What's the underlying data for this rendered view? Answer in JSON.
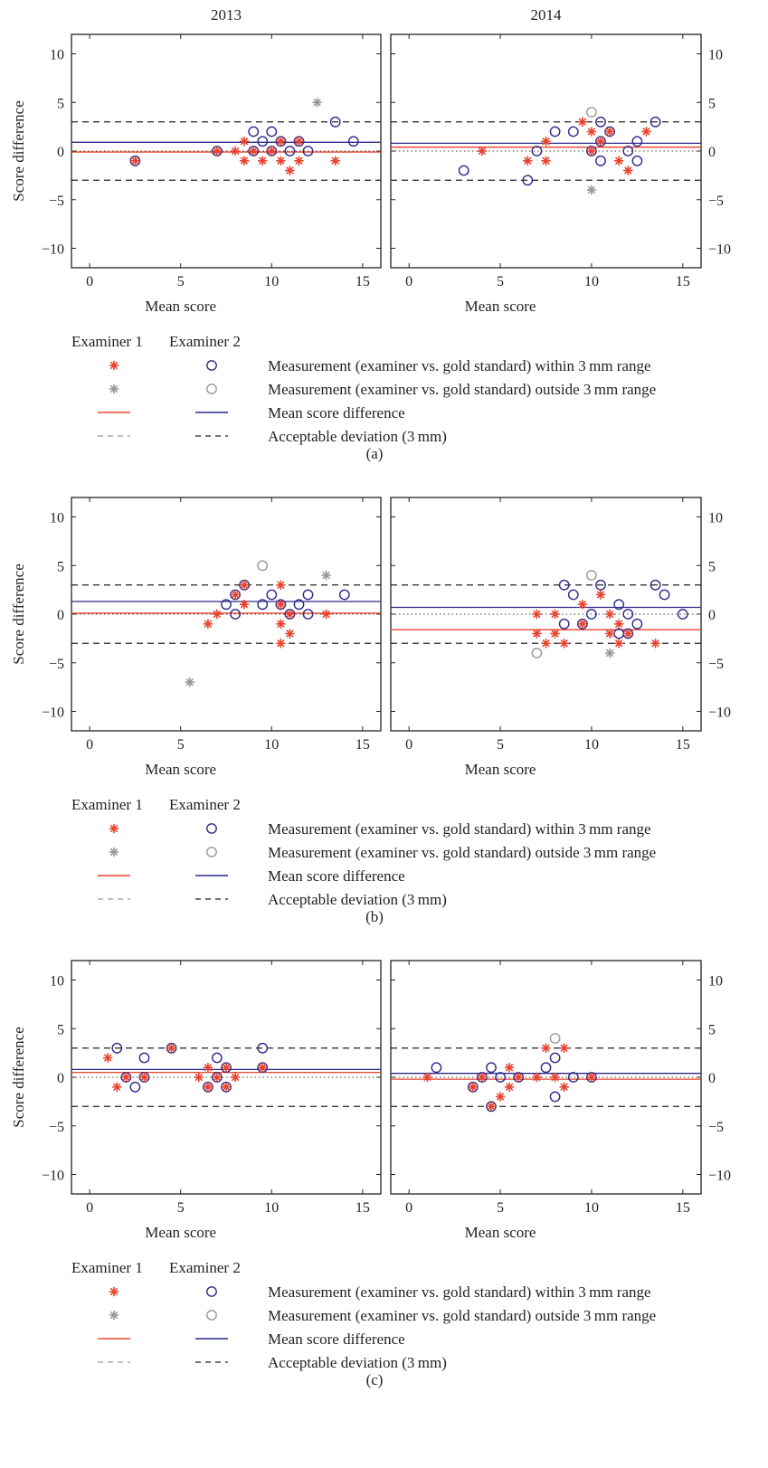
{
  "colors": {
    "examiner1": "#e8432f",
    "examiner2": "#2c2a8c",
    "outside": "#999999",
    "dashed": "#222222",
    "zero_line": "#444444"
  },
  "column_titles": [
    "2013",
    "2014"
  ],
  "legend": {
    "header_examiner1": "Examiner 1",
    "header_examiner2": "Examiner 2",
    "rows": [
      "Measurement (examiner vs. gold standard) within 3 mm range",
      "Measurement (examiner vs. gold standard) outside 3 mm range",
      "Mean score difference",
      "Acceptable deviation (3 mm)"
    ]
  },
  "chart_data": [
    {
      "panel": "(a)",
      "subplots": [
        {
          "title": "2013",
          "type": "scatter",
          "xlabel": "Mean score",
          "ylabel": "Score difference",
          "xlim": [
            -1,
            16
          ],
          "ylim": [
            -12,
            12
          ],
          "xticks": [
            0,
            5,
            10,
            15
          ],
          "yticks": [
            -10,
            -5,
            0,
            5,
            10
          ],
          "ytick_side": "left",
          "limits_of_agreement": [
            3,
            -3
          ],
          "zero_line": 0,
          "mean_difference": {
            "examiner1": -0.1,
            "examiner2": 0.9
          },
          "examiner1_within": [
            [
              2.5,
              -1
            ],
            [
              7,
              0
            ],
            [
              8,
              0
            ],
            [
              8.5,
              1
            ],
            [
              8.5,
              -1
            ],
            [
              9,
              0
            ],
            [
              9.5,
              -1
            ],
            [
              10,
              0
            ],
            [
              10.5,
              -1
            ],
            [
              10.5,
              1
            ],
            [
              11,
              -2
            ],
            [
              11.5,
              1
            ],
            [
              11.5,
              -1
            ],
            [
              13.5,
              -1
            ]
          ],
          "examiner1_outside": [
            [
              12.5,
              5
            ]
          ],
          "examiner2_within": [
            [
              2.5,
              -1
            ],
            [
              7,
              0
            ],
            [
              9,
              2
            ],
            [
              9,
              0
            ],
            [
              9.5,
              1
            ],
            [
              10,
              2
            ],
            [
              10,
              0
            ],
            [
              10.5,
              1
            ],
            [
              11,
              0
            ],
            [
              11.5,
              1
            ],
            [
              12,
              0
            ],
            [
              13.5,
              3
            ],
            [
              14.5,
              1
            ]
          ],
          "examiner2_outside": []
        },
        {
          "title": "2014",
          "type": "scatter",
          "xlabel": "Mean score",
          "ylabel": "",
          "xlim": [
            -1,
            16
          ],
          "ylim": [
            -12,
            12
          ],
          "xticks": [
            0,
            5,
            10,
            15
          ],
          "yticks": [
            -10,
            -5,
            0,
            5,
            10
          ],
          "ytick_side": "right",
          "limits_of_agreement": [
            3,
            -3
          ],
          "zero_line": 0,
          "mean_difference": {
            "examiner1": 0.4,
            "examiner2": 0.8
          },
          "examiner1_within": [
            [
              4,
              0
            ],
            [
              6.5,
              -1
            ],
            [
              7.5,
              -1
            ],
            [
              7.5,
              1
            ],
            [
              9.5,
              3
            ],
            [
              10,
              2
            ],
            [
              10,
              0
            ],
            [
              10.5,
              1
            ],
            [
              11,
              2
            ],
            [
              11.5,
              -1
            ],
            [
              12,
              -2
            ],
            [
              13,
              2
            ]
          ],
          "examiner1_outside": [
            [
              10,
              -4
            ]
          ],
          "examiner2_within": [
            [
              3,
              -2
            ],
            [
              6.5,
              -3
            ],
            [
              7,
              0
            ],
            [
              8,
              2
            ],
            [
              9,
              2
            ],
            [
              10,
              0
            ],
            [
              10.5,
              3
            ],
            [
              10.5,
              1
            ],
            [
              10.5,
              -1
            ],
            [
              11,
              2
            ],
            [
              12,
              0
            ],
            [
              12.5,
              1
            ],
            [
              12.5,
              -1
            ],
            [
              13.5,
              3
            ]
          ],
          "examiner2_outside": [
            [
              10,
              4
            ]
          ]
        }
      ]
    },
    {
      "panel": "(b)",
      "subplots": [
        {
          "title": "",
          "type": "scatter",
          "xlabel": "Mean score",
          "ylabel": "Score difference",
          "xlim": [
            -1,
            16
          ],
          "ylim": [
            -12,
            12
          ],
          "xticks": [
            0,
            5,
            10,
            15
          ],
          "yticks": [
            -10,
            -5,
            0,
            5,
            10
          ],
          "ytick_side": "left",
          "limits_of_agreement": [
            3,
            -3
          ],
          "zero_line": 0,
          "mean_difference": {
            "examiner1": 0.1,
            "examiner2": 1.3
          },
          "examiner1_within": [
            [
              6.5,
              -1
            ],
            [
              7,
              0
            ],
            [
              8,
              2
            ],
            [
              8.5,
              1
            ],
            [
              8.5,
              3
            ],
            [
              10.5,
              3
            ],
            [
              10.5,
              1
            ],
            [
              10.5,
              -1
            ],
            [
              10.5,
              -3
            ],
            [
              11,
              0
            ],
            [
              11,
              -2
            ],
            [
              13,
              0
            ]
          ],
          "examiner1_outside": [
            [
              13,
              4
            ],
            [
              5.5,
              -7
            ]
          ],
          "examiner2_within": [
            [
              7.5,
              1
            ],
            [
              8,
              2
            ],
            [
              8,
              0
            ],
            [
              8.5,
              3
            ],
            [
              9.5,
              1
            ],
            [
              10,
              2
            ],
            [
              10.5,
              1
            ],
            [
              11,
              0
            ],
            [
              11.5,
              1
            ],
            [
              12,
              2
            ],
            [
              12,
              0
            ],
            [
              14,
              2
            ]
          ],
          "examiner2_outside": [
            [
              9.5,
              5
            ]
          ]
        },
        {
          "title": "",
          "type": "scatter",
          "xlabel": "Mean score",
          "ylabel": "",
          "xlim": [
            -1,
            16
          ],
          "ylim": [
            -12,
            12
          ],
          "xticks": [
            0,
            5,
            10,
            15
          ],
          "yticks": [
            -10,
            -5,
            0,
            5,
            10
          ],
          "ytick_side": "right",
          "limits_of_agreement": [
            3,
            -3
          ],
          "zero_line": 0,
          "mean_difference": {
            "examiner1": -1.6,
            "examiner2": 0.7
          },
          "examiner1_within": [
            [
              7,
              0
            ],
            [
              7,
              -2
            ],
            [
              7.5,
              -3
            ],
            [
              8,
              0
            ],
            [
              8,
              -2
            ],
            [
              8.5,
              -3
            ],
            [
              9.5,
              1
            ],
            [
              9.5,
              -1
            ],
            [
              10.5,
              2
            ],
            [
              11,
              0
            ],
            [
              11,
              -2
            ],
            [
              11.5,
              -1
            ],
            [
              11.5,
              -3
            ],
            [
              12,
              -2
            ],
            [
              13.5,
              -3
            ]
          ],
          "examiner1_outside": [
            [
              11,
              -4
            ]
          ],
          "examiner2_within": [
            [
              8.5,
              3
            ],
            [
              8.5,
              -1
            ],
            [
              9,
              2
            ],
            [
              9.5,
              -1
            ],
            [
              10,
              0
            ],
            [
              10.5,
              3
            ],
            [
              11.5,
              1
            ],
            [
              11.5,
              -2
            ],
            [
              12,
              0
            ],
            [
              12,
              -2
            ],
            [
              12.5,
              -1
            ],
            [
              13.5,
              3
            ],
            [
              14,
              2
            ],
            [
              15,
              0
            ]
          ],
          "examiner2_outside": [
            [
              7,
              -4
            ],
            [
              10,
              4
            ]
          ]
        }
      ]
    },
    {
      "panel": "(c)",
      "subplots": [
        {
          "title": "",
          "type": "scatter",
          "xlabel": "Mean score",
          "ylabel": "Score difference",
          "xlim": [
            -1,
            16
          ],
          "ylim": [
            -12,
            12
          ],
          "xticks": [
            0,
            5,
            10,
            15
          ],
          "yticks": [
            -10,
            -5,
            0,
            5,
            10
          ],
          "ytick_side": "left",
          "limits_of_agreement": [
            3,
            -3
          ],
          "zero_line": 0,
          "mean_difference": {
            "examiner1": 0.5,
            "examiner2": 0.8
          },
          "examiner1_within": [
            [
              1,
              2
            ],
            [
              1.5,
              -1
            ],
            [
              2,
              0
            ],
            [
              3,
              0
            ],
            [
              4.5,
              3
            ],
            [
              6,
              0
            ],
            [
              6.5,
              1
            ],
            [
              6.5,
              -1
            ],
            [
              7,
              0
            ],
            [
              7.5,
              1
            ],
            [
              7.5,
              -1
            ],
            [
              8,
              0
            ],
            [
              9.5,
              1
            ]
          ],
          "examiner1_outside": [],
          "examiner2_within": [
            [
              1.5,
              3
            ],
            [
              2,
              0
            ],
            [
              2.5,
              -1
            ],
            [
              3,
              2
            ],
            [
              3,
              0
            ],
            [
              4.5,
              3
            ],
            [
              6.5,
              -1
            ],
            [
              7,
              2
            ],
            [
              7,
              0
            ],
            [
              7.5,
              1
            ],
            [
              7.5,
              -1
            ],
            [
              9.5,
              3
            ],
            [
              9.5,
              1
            ]
          ],
          "examiner2_outside": []
        },
        {
          "title": "",
          "type": "scatter",
          "xlabel": "Mean score",
          "ylabel": "",
          "xlim": [
            -1,
            16
          ],
          "ylim": [
            -12,
            12
          ],
          "xticks": [
            0,
            5,
            10,
            15
          ],
          "yticks": [
            -10,
            -5,
            0,
            5,
            10
          ],
          "ytick_side": "right",
          "limits_of_agreement": [
            3,
            -3
          ],
          "zero_line": 0,
          "mean_difference": {
            "examiner1": -0.2,
            "examiner2": 0.4
          },
          "examiner1_within": [
            [
              1,
              0
            ],
            [
              3.5,
              -1
            ],
            [
              4,
              0
            ],
            [
              4.5,
              -3
            ],
            [
              5,
              -2
            ],
            [
              5.5,
              1
            ],
            [
              5.5,
              -1
            ],
            [
              6,
              0
            ],
            [
              7,
              0
            ],
            [
              7.5,
              3
            ],
            [
              8,
              0
            ],
            [
              8.5,
              3
            ],
            [
              8.5,
              -1
            ],
            [
              10,
              0
            ]
          ],
          "examiner1_outside": [],
          "examiner2_within": [
            [
              1.5,
              1
            ],
            [
              3.5,
              -1
            ],
            [
              4,
              0
            ],
            [
              4.5,
              1
            ],
            [
              4.5,
              -3
            ],
            [
              5,
              0
            ],
            [
              6,
              0
            ],
            [
              7.5,
              1
            ],
            [
              8,
              2
            ],
            [
              8,
              -2
            ],
            [
              9,
              0
            ],
            [
              10,
              0
            ]
          ],
          "examiner2_outside": [
            [
              8,
              4
            ]
          ]
        }
      ]
    }
  ]
}
